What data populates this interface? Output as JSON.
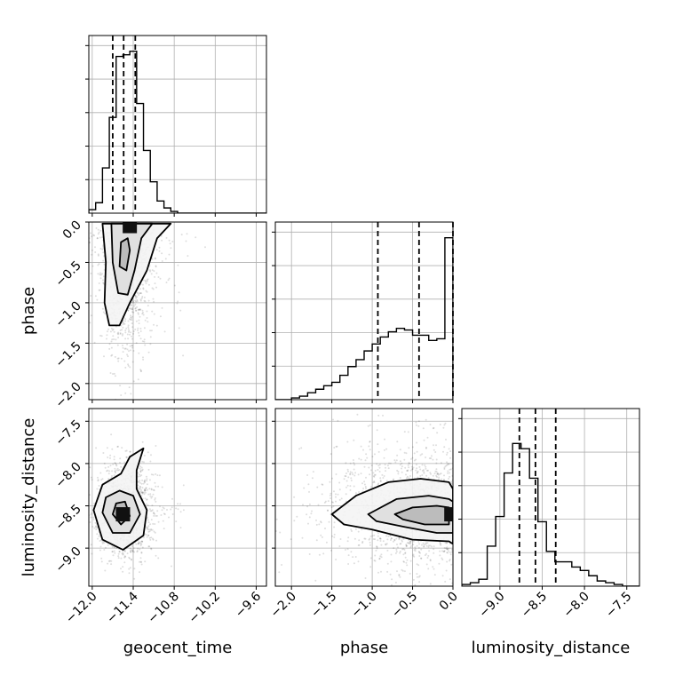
{
  "chart_data": {
    "type": "corner",
    "parameters": [
      "geocent_time",
      "phase",
      "luminosity_distance"
    ],
    "ranges": {
      "geocent_time": [
        -12.05,
        -9.45
      ],
      "phase": [
        -2.2,
        0.0
      ],
      "luminosity_distance": [
        -9.45,
        -7.35
      ]
    },
    "ticks": {
      "geocent_time": [
        -12.0,
        -11.4,
        -10.8,
        -10.2,
        -9.6
      ],
      "phase": [
        -2.0,
        -1.5,
        -1.0,
        -0.5,
        0.0
      ],
      "luminosity_distance": [
        -9.0,
        -8.5,
        -8.0,
        -7.5
      ]
    },
    "tick_labels": {
      "geocent_time": [
        "−12.0",
        "−11.4",
        "−10.8",
        "−10.2",
        "−9.6"
      ],
      "phase": [
        "−2.0",
        "−1.5",
        "−1.0",
        "−0.5",
        "0.0"
      ],
      "luminosity_distance": [
        "−9.0",
        "−8.5",
        "−8.0",
        "−7.5"
      ]
    },
    "quantiles": {
      "geocent_time": [
        -11.7,
        -11.54,
        -11.37
      ],
      "phase": [
        -0.93,
        -0.42,
        0.0
      ],
      "luminosity_distance": [
        -8.77,
        -8.58,
        -8.34
      ]
    },
    "histograms": {
      "geocent_time": {
        "bin_start": -12.05,
        "bin_width": 0.1,
        "counts": [
          0.02,
          0.06,
          0.26,
          0.55,
          0.9,
          0.91,
          0.93,
          0.63,
          0.36,
          0.18,
          0.07,
          0.03,
          0.01,
          0.0,
          0.0,
          0.0,
          0.0,
          0.0,
          0.0,
          0.0,
          0.0,
          0.0,
          0.0,
          0.0,
          0.0,
          0.0
        ]
      },
      "phase": {
        "bin_start": -2.2,
        "bin_width": 0.1,
        "counts": [
          0.0,
          0.0,
          0.01,
          0.02,
          0.04,
          0.06,
          0.08,
          0.1,
          0.14,
          0.19,
          0.23,
          0.28,
          0.32,
          0.36,
          0.39,
          0.41,
          0.4,
          0.37,
          0.37,
          0.34,
          0.35,
          0.93
        ]
      },
      "luminosity_distance": {
        "bin_start": -9.45,
        "bin_width": 0.1,
        "counts": [
          0.01,
          0.02,
          0.04,
          0.23,
          0.4,
          0.65,
          0.82,
          0.79,
          0.62,
          0.37,
          0.2,
          0.14,
          0.14,
          0.11,
          0.09,
          0.06,
          0.03,
          0.02,
          0.01,
          0.0,
          0.0
        ]
      }
    },
    "contours_2d": [
      {
        "x": "geocent_time",
        "y": "phase",
        "centers": [
          [
            -11.45,
            -0.05
          ]
        ],
        "levels": [
          [
            [
              -11.85,
              -0.02
            ],
            [
              -11.8,
              -0.5
            ],
            [
              -11.82,
              -1.0
            ],
            [
              -11.75,
              -1.28
            ],
            [
              -11.6,
              -1.28
            ],
            [
              -11.45,
              -1.0
            ],
            [
              -11.2,
              -0.6
            ],
            [
              -11.05,
              -0.2
            ],
            [
              -10.85,
              -0.02
            ]
          ],
          [
            [
              -11.72,
              -0.02
            ],
            [
              -11.7,
              -0.5
            ],
            [
              -11.62,
              -0.88
            ],
            [
              -11.48,
              -0.9
            ],
            [
              -11.38,
              -0.6
            ],
            [
              -11.28,
              -0.2
            ],
            [
              -11.12,
              -0.02
            ]
          ],
          [
            [
              -11.58,
              -0.25
            ],
            [
              -11.6,
              -0.55
            ],
            [
              -11.5,
              -0.6
            ],
            [
              -11.45,
              -0.35
            ],
            [
              -11.48,
              -0.2
            ]
          ]
        ]
      },
      {
        "x": "geocent_time",
        "y": "luminosity_distance",
        "centers": [
          [
            -11.55,
            -8.6
          ]
        ],
        "levels": [
          [
            [
              -11.98,
              -8.55
            ],
            [
              -11.85,
              -8.9
            ],
            [
              -11.55,
              -9.02
            ],
            [
              -11.25,
              -8.85
            ],
            [
              -11.2,
              -8.55
            ],
            [
              -11.35,
              -8.3
            ],
            [
              -11.35,
              -8.08
            ],
            [
              -11.25,
              -7.82
            ],
            [
              -11.45,
              -7.92
            ],
            [
              -11.58,
              -8.12
            ],
            [
              -11.85,
              -8.25
            ]
          ],
          [
            [
              -11.85,
              -8.58
            ],
            [
              -11.7,
              -8.82
            ],
            [
              -11.45,
              -8.82
            ],
            [
              -11.3,
              -8.6
            ],
            [
              -11.4,
              -8.38
            ],
            [
              -11.6,
              -8.32
            ],
            [
              -11.8,
              -8.4
            ]
          ],
          [
            [
              -11.7,
              -8.6
            ],
            [
              -11.58,
              -8.72
            ],
            [
              -11.45,
              -8.62
            ],
            [
              -11.52,
              -8.45
            ],
            [
              -11.65,
              -8.47
            ]
          ]
        ]
      },
      {
        "x": "phase",
        "y": "luminosity_distance",
        "centers": [
          [
            -0.02,
            -8.6
          ]
        ],
        "levels": [
          [
            [
              -1.5,
              -8.6
            ],
            [
              -1.2,
              -8.38
            ],
            [
              -0.8,
              -8.22
            ],
            [
              -0.4,
              -8.18
            ],
            [
              -0.05,
              -8.22
            ],
            [
              0.0,
              -8.3
            ],
            [
              0.0,
              -8.95
            ],
            [
              -0.05,
              -8.92
            ],
            [
              -0.5,
              -8.9
            ],
            [
              -1.0,
              -8.78
            ],
            [
              -1.35,
              -8.72
            ]
          ],
          [
            [
              -1.05,
              -8.6
            ],
            [
              -0.7,
              -8.42
            ],
            [
              -0.3,
              -8.38
            ],
            [
              -0.05,
              -8.42
            ],
            [
              0.0,
              -8.45
            ],
            [
              0.0,
              -8.82
            ],
            [
              -0.2,
              -8.82
            ],
            [
              -0.6,
              -8.75
            ],
            [
              -0.95,
              -8.68
            ]
          ],
          [
            [
              -0.72,
              -8.6
            ],
            [
              -0.5,
              -8.52
            ],
            [
              -0.2,
              -8.5
            ],
            [
              -0.05,
              -8.52
            ],
            [
              -0.05,
              -8.72
            ],
            [
              -0.35,
              -8.72
            ],
            [
              -0.62,
              -8.66
            ]
          ]
        ]
      }
    ]
  }
}
